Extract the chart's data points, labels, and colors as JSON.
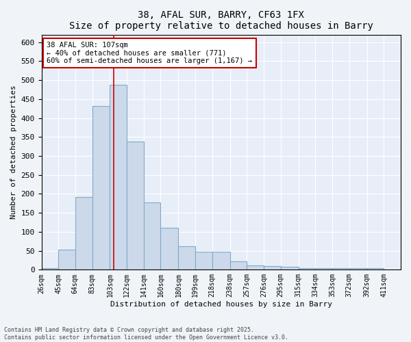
{
  "title1": "38, AFAL SUR, BARRY, CF63 1FX",
  "title2": "Size of property relative to detached houses in Barry",
  "xlabel": "Distribution of detached houses by size in Barry",
  "ylabel": "Number of detached properties",
  "bar_color": "#ccd9ea",
  "bar_edge_color": "#7faac8",
  "bins": [
    26,
    45,
    64,
    83,
    103,
    122,
    141,
    160,
    180,
    199,
    218,
    238,
    257,
    276,
    295,
    315,
    334,
    353,
    372,
    392,
    411
  ],
  "counts": [
    5,
    52,
    191,
    432,
    487,
    337,
    177,
    110,
    62,
    47,
    47,
    22,
    12,
    10,
    7,
    5,
    4,
    4,
    5,
    4
  ],
  "tick_labels": [
    "26sqm",
    "45sqm",
    "64sqm",
    "83sqm",
    "103sqm",
    "122sqm",
    "141sqm",
    "160sqm",
    "180sqm",
    "199sqm",
    "218sqm",
    "238sqm",
    "257sqm",
    "276sqm",
    "295sqm",
    "315sqm",
    "334sqm",
    "353sqm",
    "372sqm",
    "392sqm",
    "411sqm"
  ],
  "vline_x": 107,
  "vline_color": "#cc0000",
  "annotation_line1": "38 AFAL SUR: 107sqm",
  "annotation_line2": "← 40% of detached houses are smaller (771)",
  "annotation_line3": "60% of semi-detached houses are larger (1,167) →",
  "annotation_box_color": "#ffffff",
  "annotation_border_color": "#cc0000",
  "ylim": [
    0,
    620
  ],
  "yticks": [
    0,
    50,
    100,
    150,
    200,
    250,
    300,
    350,
    400,
    450,
    500,
    550,
    600
  ],
  "footnote": "Contains HM Land Registry data © Crown copyright and database right 2025.\nContains public sector information licensed under the Open Government Licence v3.0.",
  "bg_color": "#f0f4f8",
  "plot_bg_color": "#e8eef8",
  "grid_color": "#ffffff",
  "title_fontsize": 10,
  "axis_label_fontsize": 8,
  "tick_fontsize": 7,
  "annotation_fontsize": 7.5,
  "footnote_fontsize": 6
}
